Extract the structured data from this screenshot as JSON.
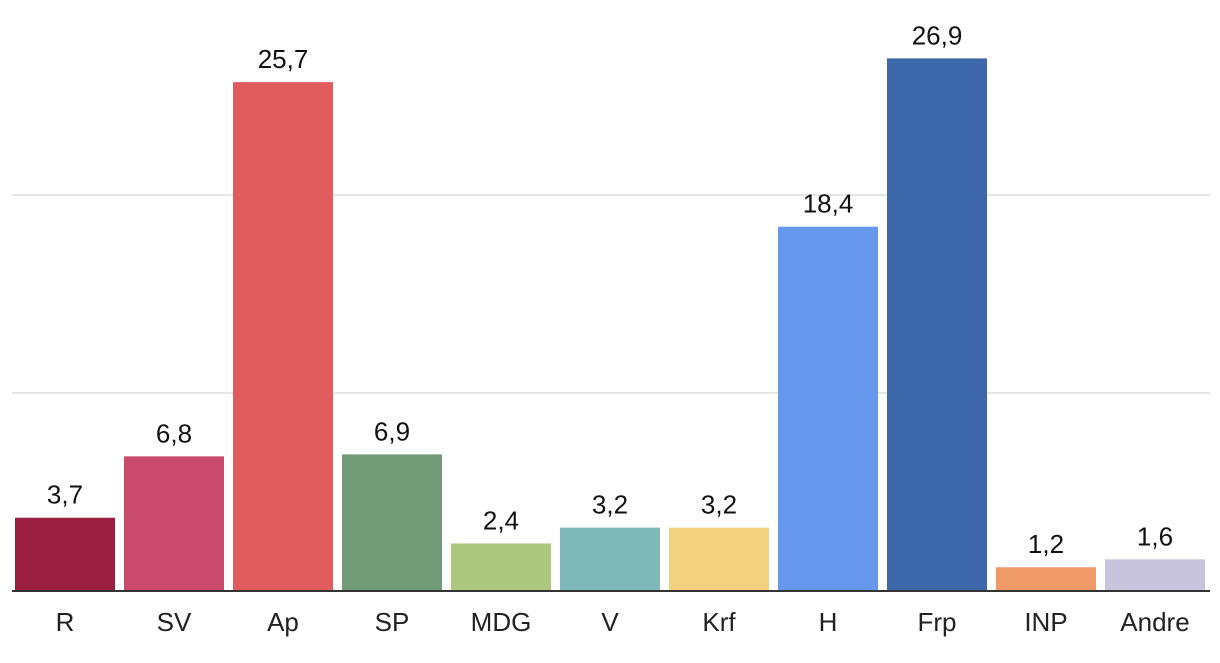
{
  "chart_data": {
    "type": "bar",
    "categories": [
      "R",
      "SV",
      "Ap",
      "SP",
      "MDG",
      "V",
      "Krf",
      "H",
      "Frp",
      "INP",
      "Andre"
    ],
    "values": [
      3.7,
      6.8,
      25.7,
      6.9,
      2.4,
      3.2,
      3.2,
      18.4,
      26.9,
      1.2,
      1.6
    ],
    "value_labels": [
      "3,7",
      "6,8",
      "25,7",
      "6,9",
      "2,4",
      "3,2",
      "3,2",
      "18,4",
      "26,9",
      "1,2",
      "1,6"
    ],
    "colors": [
      "#9b1f3e",
      "#c94a6a",
      "#e05c5c",
      "#729b78",
      "#adc77f",
      "#7fb8b8",
      "#f2d27e",
      "#6699ee",
      "#3d67ab",
      "#f09a6a",
      "#c9c4de"
    ],
    "ylim": [
      0,
      30
    ],
    "gridlines": [
      10,
      20
    ],
    "grid": true,
    "title": "",
    "xlabel": "",
    "ylabel": ""
  }
}
